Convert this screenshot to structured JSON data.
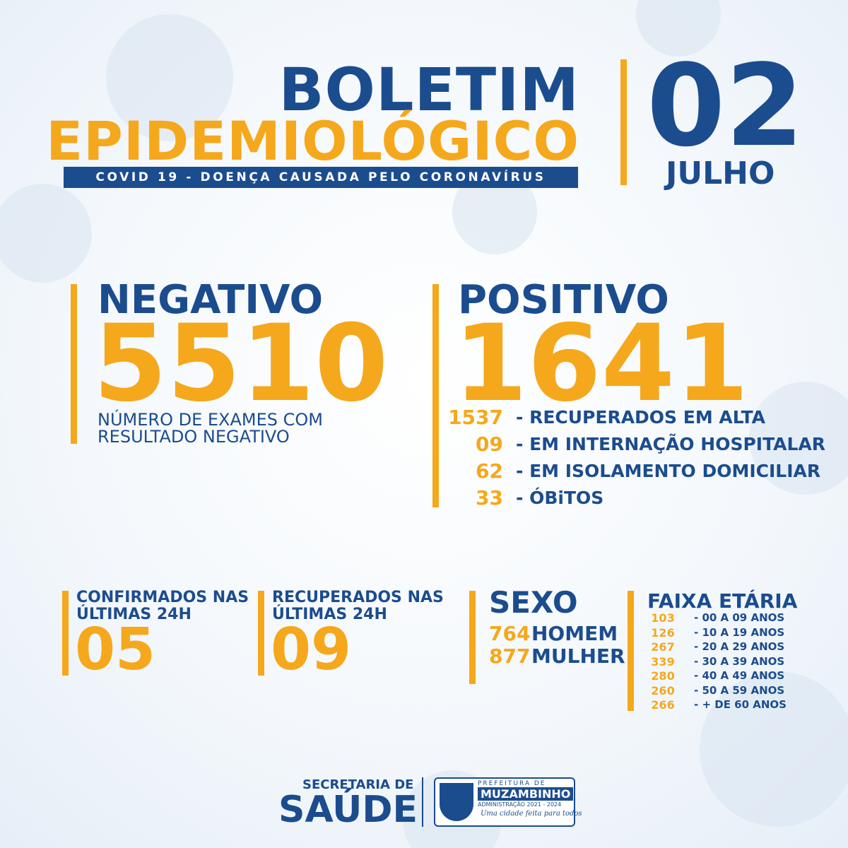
{
  "header": {
    "title_1": "BOLETIM",
    "title_2": "EPIDEMIOLÓGICO",
    "subtitle": "COVID 19 - DOENÇA CAUSADA PELO CORONAVÍRUS",
    "day": "02",
    "month": "JULHO"
  },
  "negative": {
    "label": "NEGATIVO",
    "value": "5510",
    "description_1": "NÚMERO DE EXAMES COM",
    "description_2": "RESULTADO NEGATIVO"
  },
  "positive": {
    "label": "POSITIVO",
    "value": "1641",
    "breakdown": [
      {
        "value": "1537",
        "label": "- RECUPERADOS EM ALTA"
      },
      {
        "value": "09",
        "label": "- EM INTERNAÇÃO HOSPITALAR"
      },
      {
        "value": "62",
        "label": "- EM ISOLAMENTO DOMICILIAR"
      },
      {
        "value": "33",
        "label": "- ÓBiTOS"
      }
    ]
  },
  "confirmed_24h": {
    "label_1": "CONFIRMADOS NAS",
    "label_2": "ÚLTIMAS 24H",
    "value": "05"
  },
  "recovered_24h": {
    "label_1": "RECUPERADOS NAS",
    "label_2": "ÚLTIMAS 24H",
    "value": "09"
  },
  "sex": {
    "title": "SEXO",
    "rows": [
      {
        "value": "764",
        "label": "HOMEM"
      },
      {
        "value": "877",
        "label": "MULHER"
      }
    ]
  },
  "age": {
    "title": "FAIXA ETÁRIA",
    "rows": [
      {
        "value": "103",
        "label": "- 00 A 09 ANOS"
      },
      {
        "value": "126",
        "label": "- 10 A 19 ANOS"
      },
      {
        "value": "267",
        "label": "- 20 A 29 ANOS"
      },
      {
        "value": "339",
        "label": "- 30 A 39 ANOS"
      },
      {
        "value": "280",
        "label": "- 40 A 49 ANOS"
      },
      {
        "value": "260",
        "label": "- 50 A 59 ANOS"
      },
      {
        "value": "266",
        "label": "- + DE 60 ANOS"
      }
    ]
  },
  "footer": {
    "secretaria": "SECRETARIA DE",
    "saude": "SAÚDE",
    "prefeitura": "PREFEITURA DE",
    "city": "MUZAMBINHO",
    "admin": "ADMINISTRAÇÃO 2021 - 2024",
    "slogan": "Uma cidade feita para todos"
  }
}
